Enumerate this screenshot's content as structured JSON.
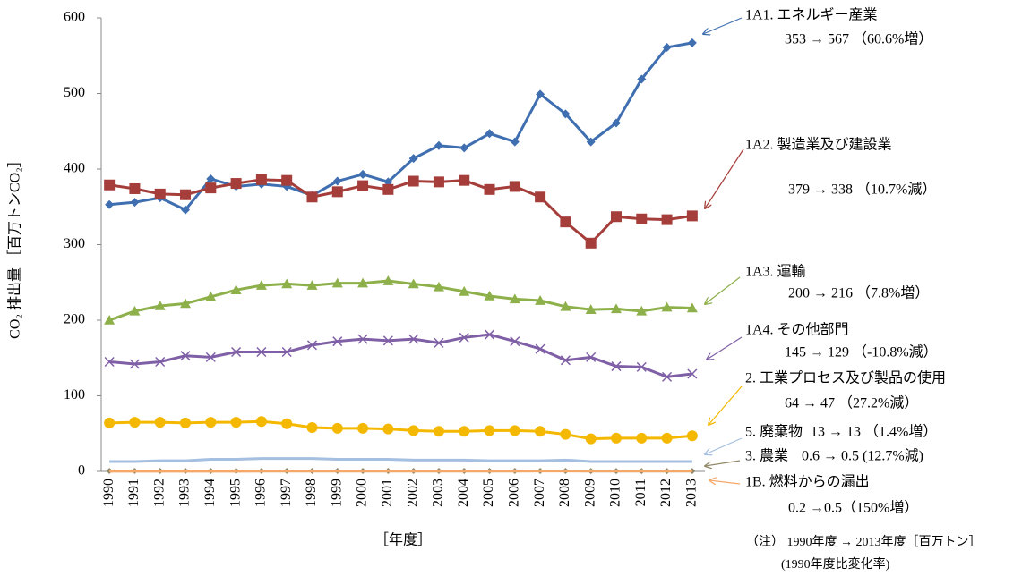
{
  "chart_data": {
    "type": "line",
    "y_label": "CO₂ 排出量 ［百万トンCO₂］",
    "x_label": "［年度］",
    "note": "（注） 1990年度 → 2013年度［百万トン］",
    "note_sub": "(1990年度比変化率)",
    "categories": [
      "1990",
      "1991",
      "1992",
      "1993",
      "1994",
      "1995",
      "1996",
      "1997",
      "1998",
      "1999",
      "2000",
      "2001",
      "2002",
      "2003",
      "2004",
      "2005",
      "2006",
      "2007",
      "2008",
      "2009",
      "2010",
      "2011",
      "2012",
      "2013"
    ],
    "ylim": [
      0,
      600
    ],
    "yticks": [
      0,
      100,
      200,
      300,
      400,
      500,
      600
    ],
    "series": [
      {
        "name": "1A1. エネルギー産業",
        "note": "353 → 567 （60.6%増）",
        "color": "#3f6fb0",
        "marker": "diamond",
        "values": [
          353,
          356,
          362,
          346,
          387,
          377,
          380,
          377,
          365,
          384,
          393,
          383,
          414,
          431,
          428,
          447,
          436,
          499,
          473,
          436,
          461,
          519,
          561,
          567
        ]
      },
      {
        "name": "1A2. 製造業及び建設業",
        "note": "379 → 338 （10.7%減）",
        "color": "#a53e3a",
        "marker": "square",
        "values": [
          379,
          374,
          367,
          366,
          375,
          381,
          386,
          385,
          363,
          370,
          378,
          373,
          384,
          383,
          385,
          373,
          377,
          363,
          330,
          302,
          337,
          334,
          333,
          338
        ]
      },
      {
        "name": "1A3. 運輸",
        "note": "200 → 216 （7.8%増）",
        "color": "#8db04a",
        "marker": "triangle",
        "values": [
          200,
          212,
          219,
          222,
          231,
          240,
          246,
          248,
          246,
          249,
          249,
          252,
          248,
          244,
          238,
          232,
          228,
          226,
          218,
          214,
          215,
          212,
          217,
          216
        ]
      },
      {
        "name": "1A4. その他部門",
        "note": "145 → 129 （-10.8%減）",
        "color": "#7f5fa6",
        "marker": "x",
        "values": [
          145,
          142,
          145,
          153,
          151,
          158,
          158,
          158,
          167,
          172,
          175,
          173,
          175,
          170,
          177,
          181,
          172,
          162,
          147,
          151,
          139,
          138,
          125,
          129
        ]
      },
      {
        "name": "2. 工業プロセス及び製品の使用",
        "note": "64 → 47 （27.2%減）",
        "color": "#f5b800",
        "marker": "circle",
        "values": [
          64,
          65,
          65,
          64,
          65,
          65,
          66,
          63,
          58,
          57,
          57,
          56,
          54,
          53,
          53,
          54,
          54,
          53,
          49,
          43,
          44,
          44,
          44,
          47
        ]
      },
      {
        "name": "5. 廃棄物",
        "note": "13 → 13 （1.4%増）",
        "color": "#a5bfe0",
        "marker": "none",
        "values": [
          13,
          13,
          14,
          14,
          16,
          16,
          17,
          17,
          17,
          16,
          16,
          16,
          15,
          15,
          15,
          14,
          14,
          14,
          15,
          13,
          13,
          13,
          13,
          13
        ]
      },
      {
        "name": "3. 農業",
        "note": "0.6 → 0.5 (12.7%減)",
        "color": "#938a6a",
        "marker": "diamond",
        "values": [
          0.6,
          0.6,
          0.6,
          0.6,
          0.6,
          0.6,
          0.6,
          0.6,
          0.6,
          0.6,
          0.6,
          0.6,
          0.6,
          0.6,
          0.6,
          0.6,
          0.6,
          0.6,
          0.6,
          0.5,
          0.5,
          0.5,
          0.5,
          0.5
        ]
      },
      {
        "name": "1B. 燃料からの漏出",
        "note": "0.2 →0.5（150%増）",
        "color": "#f5a868",
        "marker": "none",
        "values": [
          0.2,
          0.2,
          0.2,
          0.2,
          0.2,
          0.2,
          0.3,
          0.3,
          0.3,
          0.3,
          0.3,
          0.3,
          0.3,
          0.3,
          0.3,
          0.3,
          0.3,
          0.4,
          0.4,
          0.4,
          0.4,
          0.5,
          0.5,
          0.5
        ]
      }
    ]
  }
}
